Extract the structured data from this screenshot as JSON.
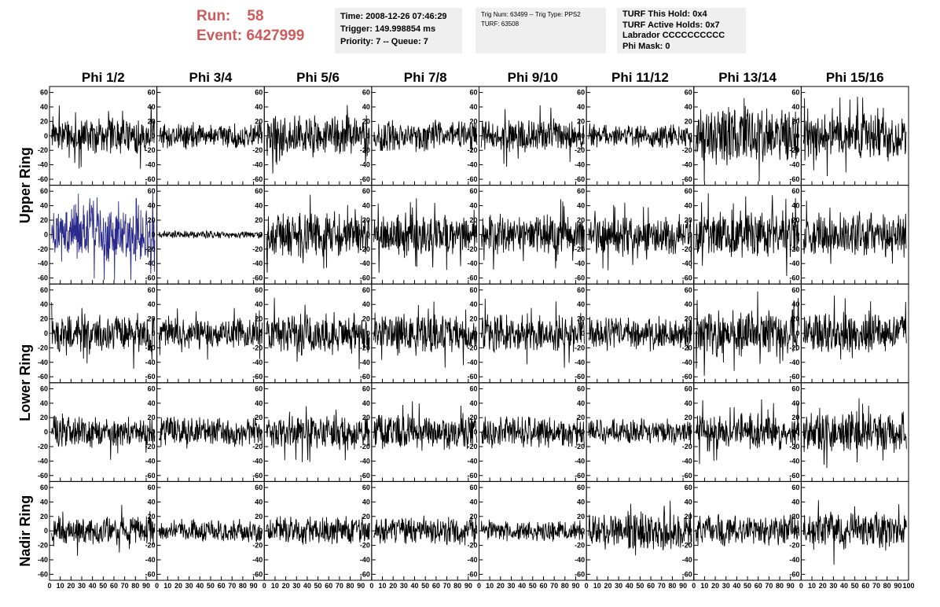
{
  "header": {
    "run_label": "Run:",
    "run_value": "58",
    "event_label": "Event:",
    "event_value": "6427999",
    "time_info": [
      "Time: 2008-12-26 07:46:29",
      "Trigger: 149.998854 ms",
      "Priority: 7 -- Queue: 7"
    ],
    "trig_info": [
      "Trig Num: 63499 -- Trig Type: PPS2",
      "",
      "TURF: 63508"
    ],
    "turf_info": [
      "TURF This Hold: 0x4",
      "TURF Active Holds: 0x7",
      "Labrador CCCCCCCCCC",
      "Phi Mask: 0"
    ]
  },
  "chart_data": {
    "type": "line",
    "column_labels": [
      "Phi 1/2",
      "Phi 3/4",
      "Phi 5/6",
      "Phi 7/8",
      "Phi 9/10",
      "Phi 11/12",
      "Phi 13/14",
      "Phi 15/16"
    ],
    "ring_labels": [
      "Upper Ring",
      "Lower Ring",
      "Nadir Ring"
    ],
    "ylim": [
      -65,
      65
    ],
    "y_ticks": [
      -60,
      -40,
      -20,
      0,
      20,
      40,
      60
    ],
    "xlim": [
      0,
      100
    ],
    "x_ticks": [
      0,
      10,
      20,
      30,
      40,
      50,
      60,
      70,
      80,
      90,
      100
    ],
    "samples_per_trace": 260,
    "default_color": "#000000",
    "highlight_color": "#2a2a8c",
    "grid": false,
    "traces": [
      [
        {
          "amp": 14,
          "spike": 1
        },
        {
          "amp": 10,
          "spike": 0
        },
        {
          "amp": 16,
          "spike": 1
        },
        {
          "amp": 12,
          "spike": 0
        },
        {
          "amp": 14,
          "spike": 1
        },
        {
          "amp": 9,
          "spike": 0
        },
        {
          "amp": 22,
          "spike": 1
        },
        {
          "amp": 17,
          "spike": 1
        }
      ],
      [
        {
          "amp": 22,
          "spike": 1,
          "color": "#2a2a8c"
        },
        {
          "amp": 3,
          "spike": 0
        },
        {
          "amp": 17,
          "spike": 1
        },
        {
          "amp": 16,
          "spike": 1
        },
        {
          "amp": 15,
          "spike": 1
        },
        {
          "amp": 15,
          "spike": 1
        },
        {
          "amp": 18,
          "spike": 1
        },
        {
          "amp": 17,
          "spike": 1
        }
      ],
      [
        {
          "amp": 15,
          "spike": 1
        },
        {
          "amp": 11,
          "spike": 1
        },
        {
          "amp": 16,
          "spike": 1
        },
        {
          "amp": 15,
          "spike": 1
        },
        {
          "amp": 15,
          "spike": 1
        },
        {
          "amp": 13,
          "spike": 0
        },
        {
          "amp": 18,
          "spike": 1
        },
        {
          "amp": 16,
          "spike": 1
        }
      ],
      [
        {
          "amp": 12,
          "spike": 1
        },
        {
          "amp": 12,
          "spike": 0
        },
        {
          "amp": 13,
          "spike": 1
        },
        {
          "amp": 14,
          "spike": 1
        },
        {
          "amp": 12,
          "spike": 0
        },
        {
          "amp": 10,
          "spike": 0
        },
        {
          "amp": 14,
          "spike": 1
        },
        {
          "amp": 16,
          "spike": 1
        }
      ],
      [
        {
          "amp": 11,
          "spike": 1
        },
        {
          "amp": 9,
          "spike": 0
        },
        {
          "amp": 11,
          "spike": 0
        },
        {
          "amp": 11,
          "spike": 0
        },
        {
          "amp": 8,
          "spike": 0
        },
        {
          "amp": 14,
          "spike": 1
        },
        {
          "amp": 12,
          "spike": 0
        },
        {
          "amp": 15,
          "spike": 1
        }
      ]
    ]
  }
}
